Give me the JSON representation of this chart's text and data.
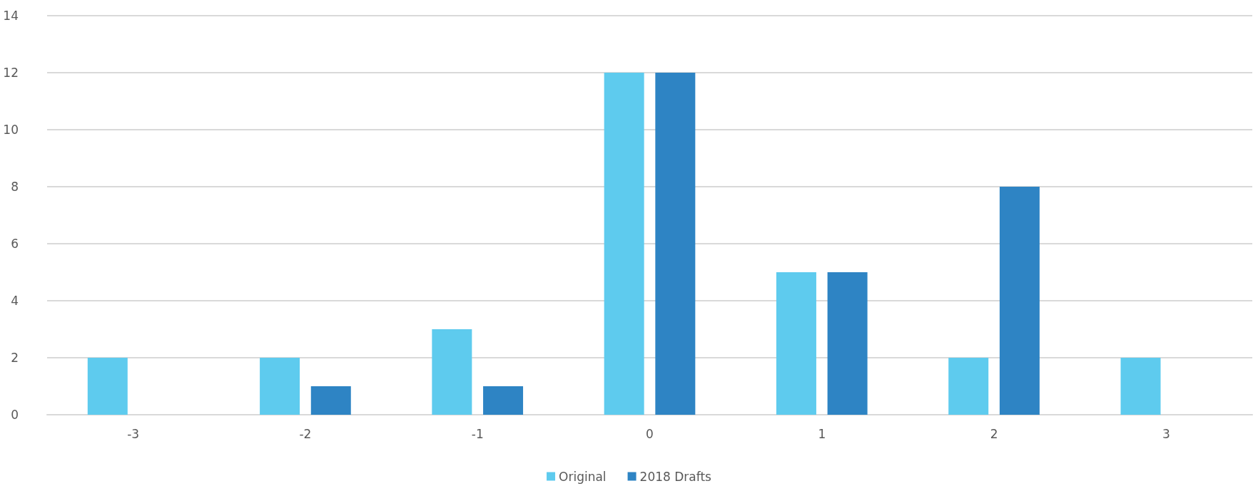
{
  "chart_data": {
    "type": "bar",
    "categories": [
      "-3",
      "-2",
      "-1",
      "0",
      "1",
      "2",
      "3"
    ],
    "series": [
      {
        "name": "Original",
        "color": "#5ecbee",
        "values": [
          2,
          2,
          3,
          12,
          5,
          2,
          2
        ]
      },
      {
        "name": "2018 Drafts",
        "color": "#2e84c4",
        "values": [
          0,
          1,
          1,
          12,
          5,
          8,
          0
        ]
      }
    ],
    "ylim": [
      0,
      14
    ],
    "yticks": [
      0,
      2,
      4,
      6,
      8,
      10,
      12,
      14
    ],
    "grid": "y",
    "legend": "bottom"
  }
}
